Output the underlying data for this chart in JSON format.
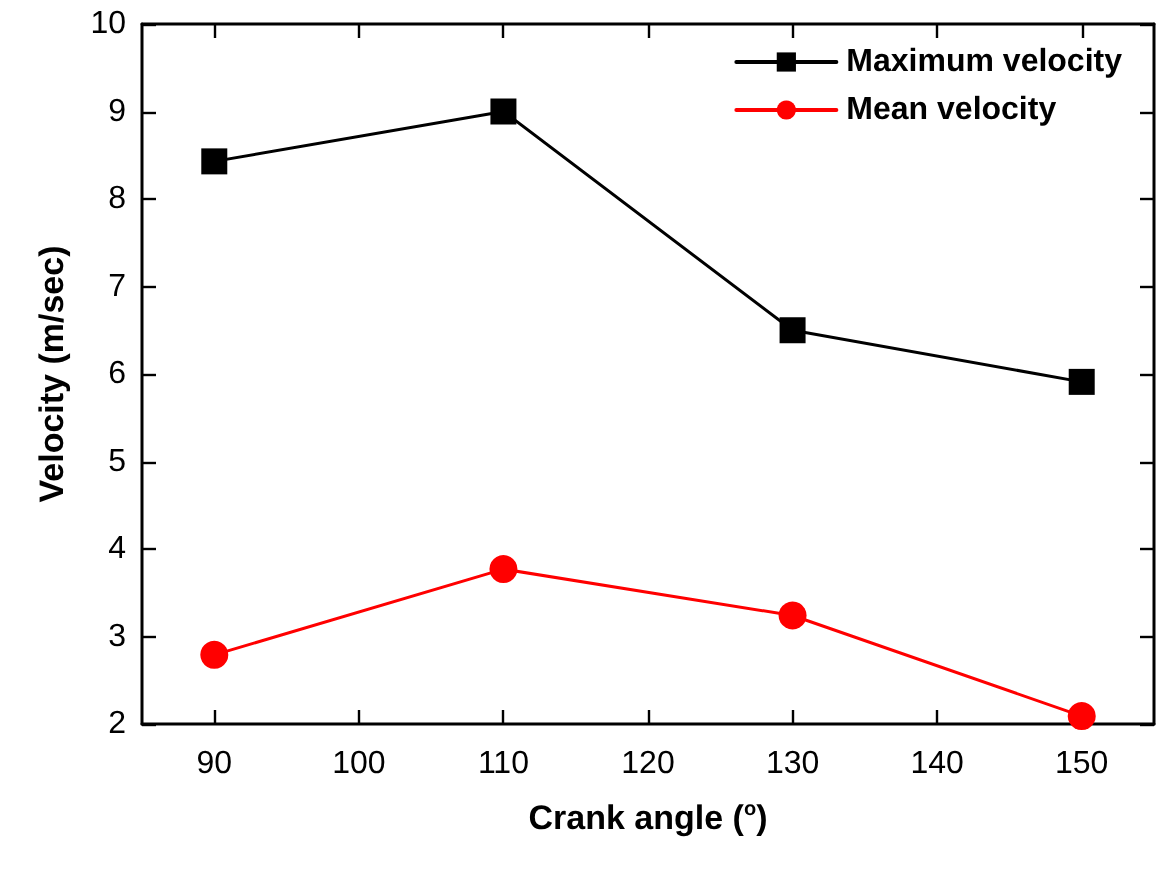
{
  "chart_data": {
    "type": "line",
    "xlabel": "Crank angle ($^{o}$)",
    "ylabel": "Velocity (m/sec)",
    "x": [
      90,
      110,
      130,
      150
    ],
    "series": [
      {
        "name": "Maximum velocity",
        "color": "#000000",
        "marker": "square",
        "values": [
          8.43,
          9.0,
          6.5,
          5.91
        ]
      },
      {
        "name": "Mean velocity",
        "color": "#ff0000",
        "marker": "circle",
        "values": [
          2.79,
          3.77,
          3.24,
          2.09
        ]
      }
    ],
    "xlim": [
      85,
      155
    ],
    "xticks": [
      90,
      100,
      110,
      120,
      130,
      140,
      150
    ],
    "ylim": [
      2,
      10
    ],
    "yticks": [
      2,
      3,
      4,
      5,
      6,
      7,
      8,
      9,
      10
    ],
    "grid": false,
    "legend": "top right",
    "line_style": "solid"
  }
}
